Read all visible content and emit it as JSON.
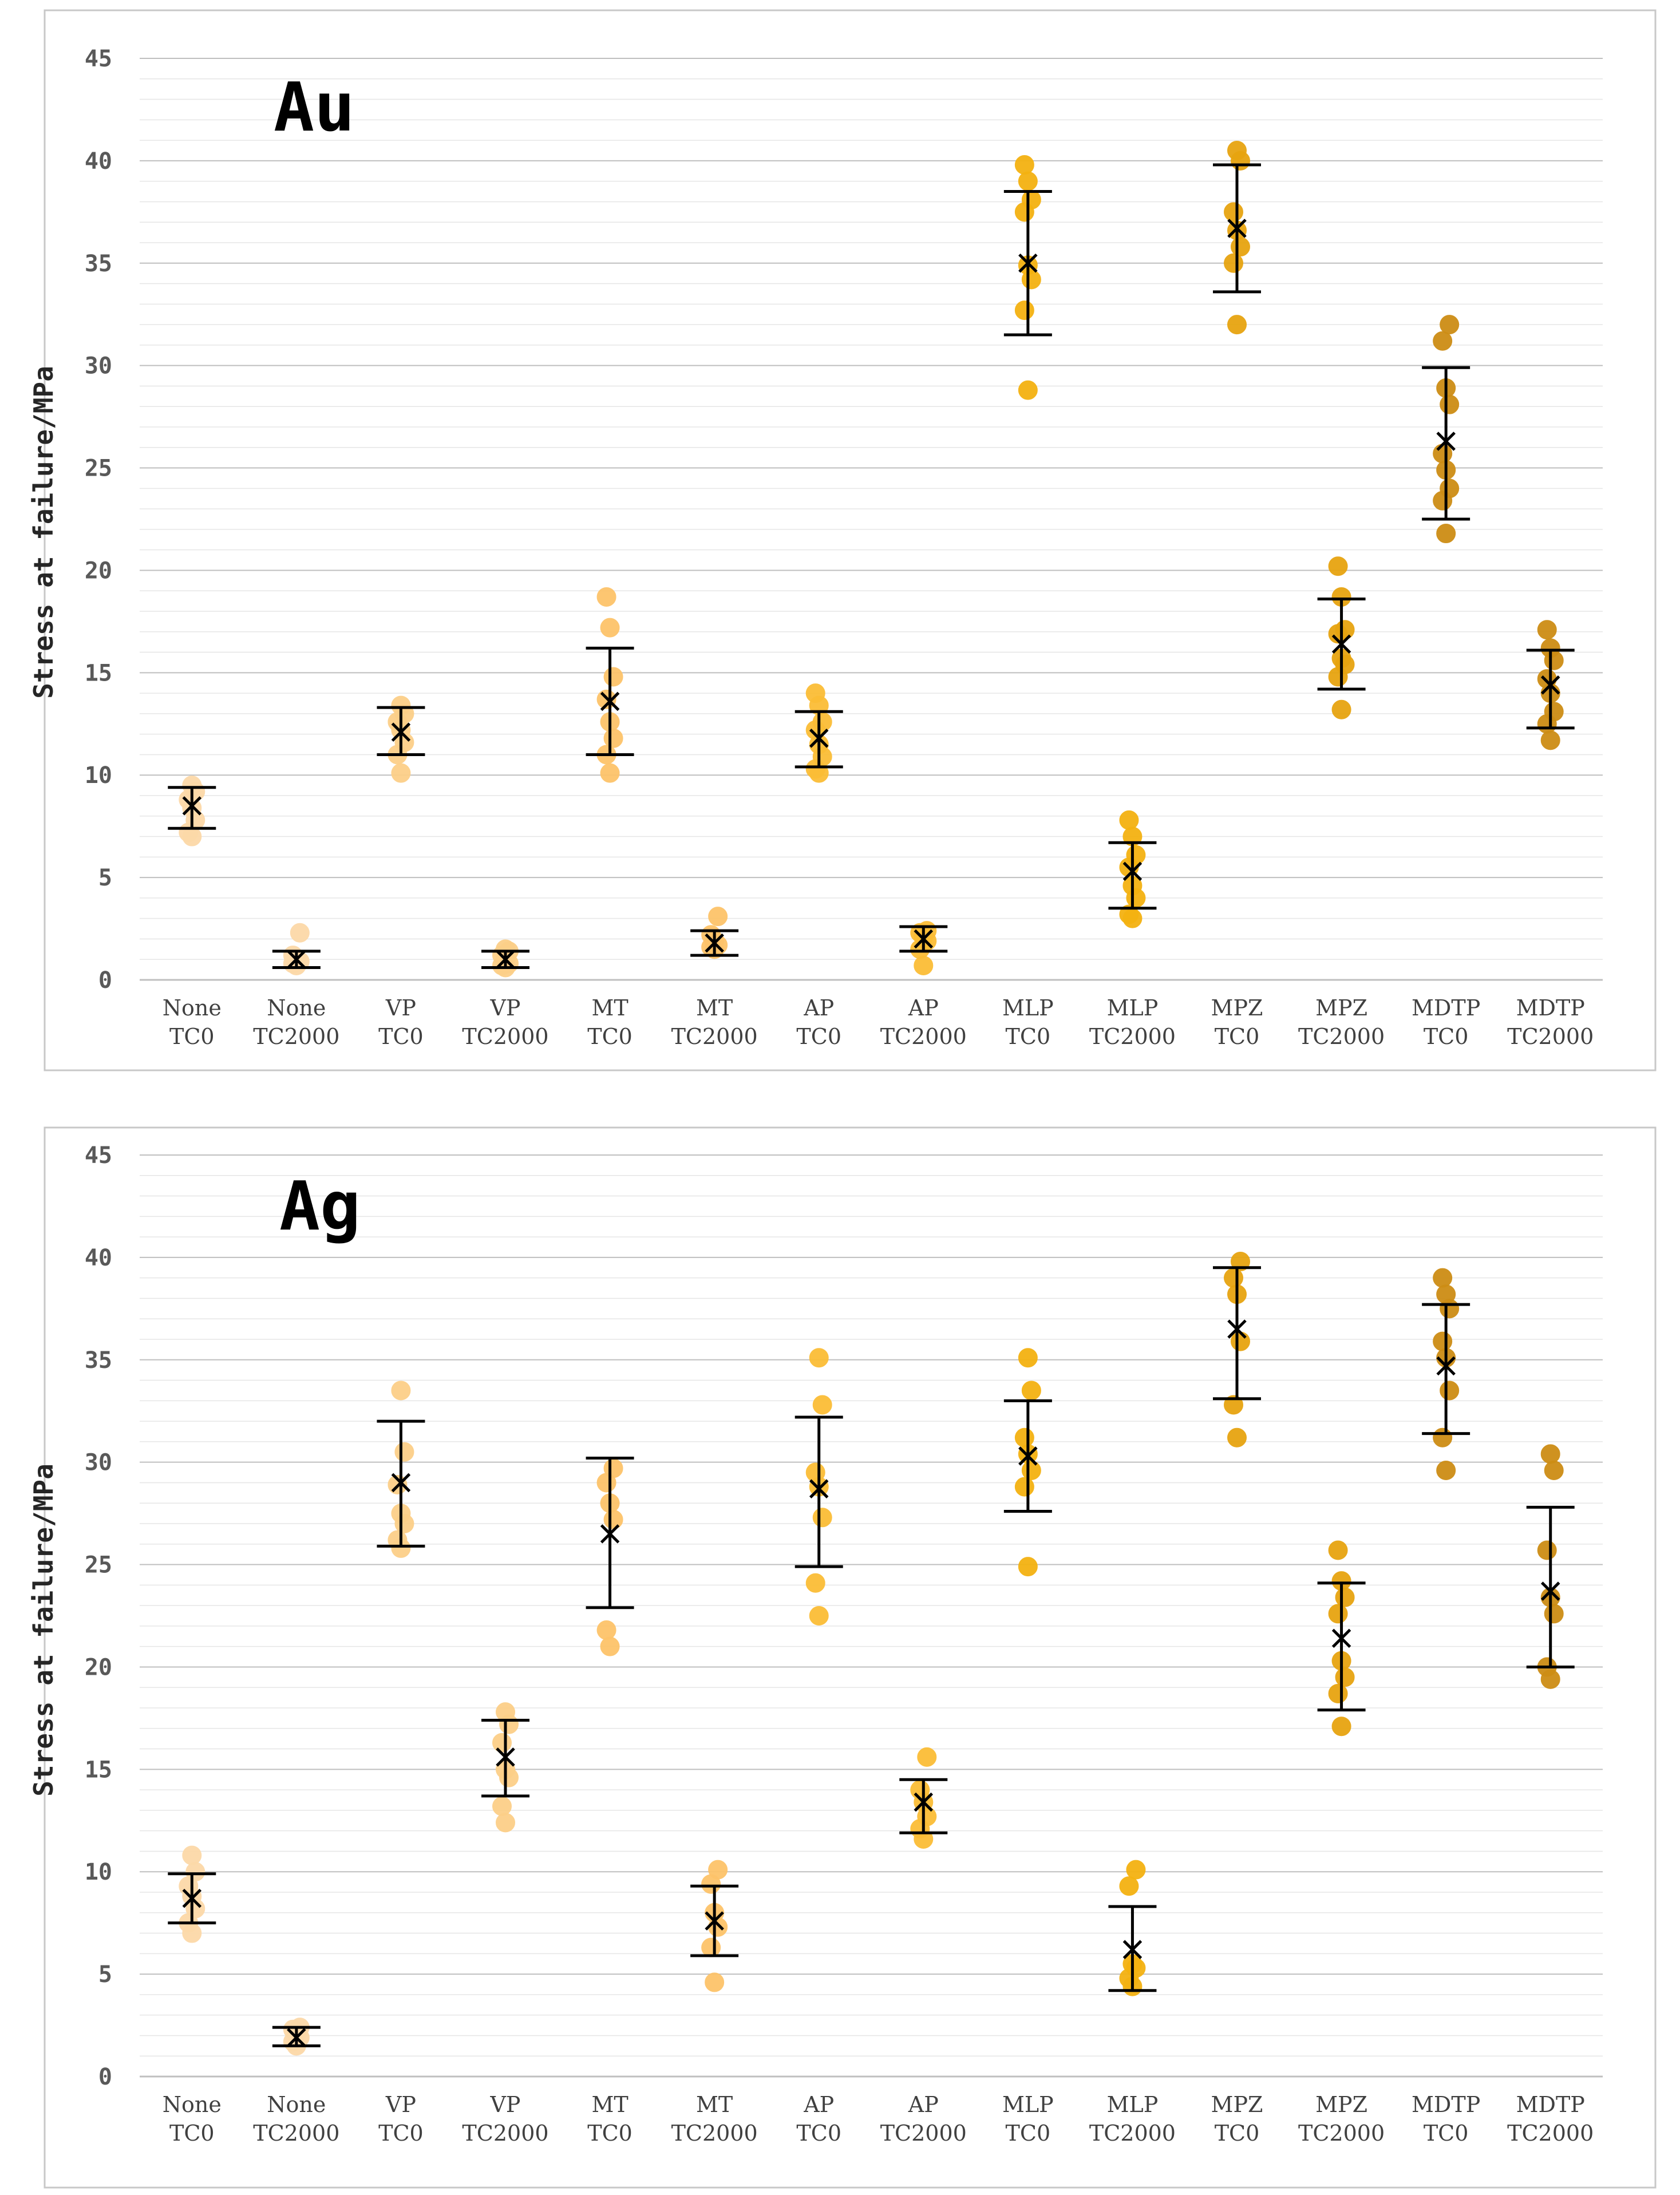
{
  "ylabel": "Stress at failure/MPa",
  "ylim": [
    0,
    45
  ],
  "yticks": [
    "0",
    "5",
    "10",
    "15",
    "20",
    "25",
    "30",
    "35",
    "40",
    "45"
  ],
  "category_lines": [
    [
      "None",
      "TC0"
    ],
    [
      "None",
      "TC2000"
    ],
    [
      "VP",
      "TC0"
    ],
    [
      "VP",
      "TC2000"
    ],
    [
      "MT",
      "TC0"
    ],
    [
      "MT",
      "TC2000"
    ],
    [
      "AP",
      "TC0"
    ],
    [
      "AP",
      "TC2000"
    ],
    [
      "MLP",
      "TC0"
    ],
    [
      "MLP",
      "TC2000"
    ],
    [
      "MPZ",
      "TC0"
    ],
    [
      "MPZ",
      "TC2000"
    ],
    [
      "MDTP",
      "TC0"
    ],
    [
      "MDTP",
      "TC2000"
    ]
  ],
  "colors": [
    "#fcd9a8",
    "#fcd9a8",
    "#fccf88",
    "#fccf88",
    "#fdc36a",
    "#fdc36a",
    "#fbbd36",
    "#fbbd36",
    "#f4b211",
    "#f4b211",
    "#e7a410",
    "#e7a410",
    "#cd8d15",
    "#cd8d15"
  ],
  "chart_data": [
    {
      "type": "scatter",
      "title": "Au",
      "ylabel": "Stress at failure/MPa",
      "ylim": [
        0,
        45
      ],
      "categories": [
        "None TC0",
        "None TC2000",
        "VP TC0",
        "VP TC2000",
        "MT TC0",
        "MT TC2000",
        "AP TC0",
        "AP TC2000",
        "MLP TC0",
        "MLP TC2000",
        "MPZ TC0",
        "MPZ TC2000",
        "MDTP TC0",
        "MDTP TC2000"
      ],
      "means": [
        8.5,
        1.0,
        12.1,
        1.0,
        13.6,
        1.8,
        11.8,
        2.0,
        35.0,
        5.3,
        36.7,
        16.4,
        26.3,
        14.4
      ],
      "err_low": [
        7.4,
        0.6,
        11.0,
        0.6,
        11.0,
        1.2,
        10.4,
        1.4,
        31.5,
        3.5,
        33.6,
        14.2,
        22.5,
        12.3
      ],
      "err_high": [
        9.4,
        1.4,
        13.3,
        1.4,
        16.2,
        2.4,
        13.1,
        2.6,
        38.5,
        6.7,
        39.8,
        18.6,
        29.9,
        16.1
      ],
      "points": [
        [
          7.0,
          7.2,
          7.8,
          8.4,
          8.8,
          9.2,
          9.5
        ],
        [
          0.7,
          0.8,
          0.9,
          1.0,
          1.2,
          2.3
        ],
        [
          10.1,
          11.0,
          11.6,
          12.2,
          12.6,
          13.0,
          13.4
        ],
        [
          0.6,
          0.7,
          0.8,
          1.0,
          1.2,
          1.4,
          1.5
        ],
        [
          10.1,
          11.0,
          11.8,
          12.6,
          13.7,
          14.8,
          17.2,
          18.7
        ],
        [
          1.5,
          1.6,
          1.7,
          1.9,
          2.2,
          3.1
        ],
        [
          10.1,
          10.3,
          10.9,
          11.5,
          12.2,
          12.6,
          13.4,
          14.0
        ],
        [
          0.7,
          1.5,
          1.9,
          2.1,
          2.3,
          2.4
        ],
        [
          28.8,
          32.7,
          34.2,
          34.9,
          37.5,
          38.1,
          39.0,
          39.8
        ],
        [
          3.0,
          3.2,
          4.0,
          4.6,
          5.5,
          6.1,
          7.0,
          7.8
        ],
        [
          32.0,
          35.0,
          35.8,
          36.6,
          37.5,
          40.0,
          40.5
        ],
        [
          13.2,
          14.8,
          15.4,
          15.7,
          16.9,
          17.1,
          18.7,
          20.2
        ],
        [
          21.8,
          23.4,
          24.0,
          24.9,
          25.7,
          28.1,
          28.9,
          31.2,
          32.0
        ],
        [
          11.7,
          12.5,
          13.1,
          14.0,
          14.7,
          15.6,
          16.2,
          17.1
        ]
      ]
    },
    {
      "type": "scatter",
      "title": "Ag",
      "ylabel": "Stress at failure/MPa",
      "ylim": [
        0,
        45
      ],
      "categories": [
        "None TC0",
        "None TC2000",
        "VP TC0",
        "VP TC2000",
        "MT TC0",
        "MT TC2000",
        "AP TC0",
        "AP TC2000",
        "MLP TC0",
        "MLP TC2000",
        "MPZ TC0",
        "MPZ TC2000",
        "MDTP TC0",
        "MDTP TC2000"
      ],
      "means": [
        8.7,
        1.9,
        29.0,
        15.6,
        26.5,
        7.6,
        28.7,
        13.4,
        30.3,
        6.2,
        36.5,
        21.4,
        34.7,
        23.7
      ],
      "err_low": [
        7.5,
        1.5,
        25.9,
        13.7,
        22.9,
        5.9,
        24.9,
        11.9,
        27.6,
        4.2,
        33.1,
        17.9,
        31.4,
        20.0
      ],
      "err_high": [
        9.9,
        2.4,
        32.0,
        17.4,
        30.2,
        9.3,
        32.2,
        14.5,
        33.0,
        8.3,
        39.5,
        24.1,
        37.7,
        27.8
      ],
      "points": [
        [
          7.0,
          7.5,
          8.2,
          8.8,
          9.3,
          10.0,
          10.8
        ],
        [
          1.5,
          1.7,
          1.9,
          2.1,
          2.3,
          2.4
        ],
        [
          25.8,
          26.2,
          27.0,
          27.5,
          28.9,
          30.5,
          33.5
        ],
        [
          12.4,
          13.2,
          14.6,
          15.0,
          16.3,
          17.2,
          17.8
        ],
        [
          21.0,
          21.8,
          27.2,
          28.0,
          29.0,
          29.7
        ],
        [
          4.6,
          6.3,
          7.3,
          8.0,
          9.4,
          10.1
        ],
        [
          22.5,
          24.1,
          27.3,
          28.8,
          29.5,
          32.8,
          35.1
        ],
        [
          11.6,
          12.1,
          12.7,
          13.4,
          14.0,
          15.6
        ],
        [
          24.9,
          28.8,
          29.6,
          30.4,
          31.2,
          33.5,
          35.1
        ],
        [
          4.4,
          4.8,
          5.3,
          5.5,
          9.3,
          10.1
        ],
        [
          31.2,
          32.8,
          35.9,
          38.2,
          39.0,
          39.8
        ],
        [
          17.1,
          18.7,
          19.5,
          20.3,
          22.6,
          23.4,
          24.2,
          25.7
        ],
        [
          29.6,
          31.2,
          33.5,
          35.1,
          35.9,
          37.5,
          38.2,
          39.0
        ],
        [
          19.4,
          20.0,
          22.6,
          23.4,
          25.7,
          29.6,
          30.4
        ]
      ]
    }
  ]
}
